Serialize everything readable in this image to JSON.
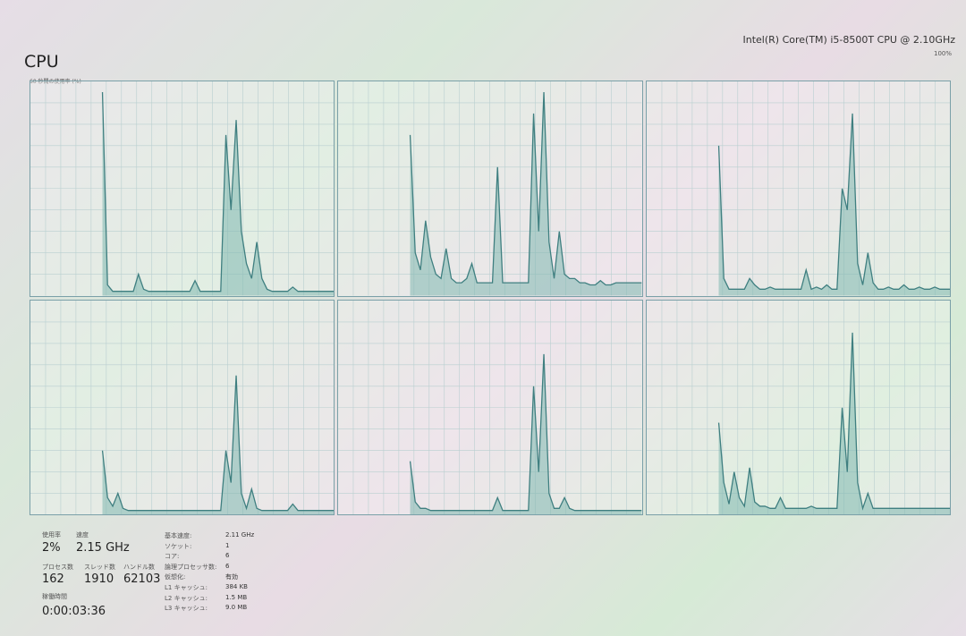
{
  "header": {
    "title": "CPU",
    "subtitle": "60 秒間の使用率 (%)",
    "cpu_name": "Intel(R) Core(TM) i5-8500T CPU @ 2.10GHz",
    "max_label": "100%"
  },
  "colors": {
    "line": "#3f7f80",
    "fill": "#7fb8b0",
    "grid": "#b9cfd0"
  },
  "chart_data": {
    "type": "area",
    "ylim": [
      0,
      100
    ],
    "grid": true,
    "series": [
      {
        "values": [
          0,
          0,
          0,
          0,
          0,
          0,
          0,
          0,
          0,
          0,
          0,
          0,
          0,
          0,
          95,
          5,
          2,
          2,
          2,
          2,
          2,
          10,
          3,
          2,
          2,
          2,
          2,
          2,
          2,
          2,
          2,
          2,
          7,
          2,
          2,
          2,
          2,
          2,
          75,
          40,
          82,
          30,
          15,
          8,
          25,
          8,
          3,
          2,
          2,
          2,
          2,
          4,
          2,
          2,
          2,
          2,
          2,
          2,
          2,
          2
        ]
      },
      {
        "values": [
          0,
          0,
          0,
          0,
          0,
          0,
          0,
          0,
          0,
          0,
          0,
          0,
          0,
          0,
          75,
          20,
          12,
          35,
          18,
          10,
          8,
          22,
          8,
          6,
          6,
          8,
          15,
          6,
          6,
          6,
          6,
          60,
          6,
          6,
          6,
          6,
          6,
          6,
          85,
          30,
          95,
          25,
          8,
          30,
          10,
          8,
          8,
          6,
          6,
          5,
          5,
          7,
          5,
          5,
          6,
          6,
          6,
          6,
          6,
          6
        ]
      },
      {
        "values": [
          0,
          0,
          0,
          0,
          0,
          0,
          0,
          0,
          0,
          0,
          0,
          0,
          0,
          0,
          70,
          8,
          3,
          3,
          3,
          3,
          8,
          5,
          3,
          3,
          4,
          3,
          3,
          3,
          3,
          3,
          3,
          12,
          3,
          4,
          3,
          5,
          3,
          3,
          50,
          40,
          85,
          15,
          5,
          20,
          6,
          3,
          3,
          4,
          3,
          3,
          5,
          3,
          3,
          4,
          3,
          3,
          4,
          3,
          3,
          3
        ]
      },
      {
        "values": [
          0,
          0,
          0,
          0,
          0,
          0,
          0,
          0,
          0,
          0,
          0,
          0,
          0,
          0,
          30,
          8,
          4,
          10,
          3,
          2,
          2,
          2,
          2,
          2,
          2,
          2,
          2,
          2,
          2,
          2,
          2,
          2,
          2,
          2,
          2,
          2,
          2,
          2,
          30,
          15,
          65,
          10,
          3,
          12,
          3,
          2,
          2,
          2,
          2,
          2,
          2,
          5,
          2,
          2,
          2,
          2,
          2,
          2,
          2,
          2
        ]
      },
      {
        "values": [
          0,
          0,
          0,
          0,
          0,
          0,
          0,
          0,
          0,
          0,
          0,
          0,
          0,
          0,
          25,
          6,
          3,
          3,
          2,
          2,
          2,
          2,
          2,
          2,
          2,
          2,
          2,
          2,
          2,
          2,
          2,
          8,
          2,
          2,
          2,
          2,
          2,
          2,
          60,
          20,
          75,
          10,
          3,
          3,
          8,
          3,
          2,
          2,
          2,
          2,
          2,
          2,
          2,
          2,
          2,
          2,
          2,
          2,
          2,
          2
        ]
      },
      {
        "values": [
          0,
          0,
          0,
          0,
          0,
          0,
          0,
          0,
          0,
          0,
          0,
          0,
          0,
          0,
          43,
          15,
          5,
          20,
          8,
          4,
          22,
          6,
          4,
          4,
          3,
          3,
          8,
          3,
          3,
          3,
          3,
          3,
          4,
          3,
          3,
          3,
          3,
          3,
          50,
          20,
          85,
          15,
          3,
          10,
          3,
          3,
          3,
          3,
          3,
          3,
          3,
          3,
          3,
          3,
          3,
          3,
          3,
          3,
          3,
          3
        ]
      }
    ]
  },
  "stats": {
    "usage_label": "使用率",
    "usage": "2%",
    "speed_label": "速度",
    "speed": "2.15 GHz",
    "processes_label": "プロセス数",
    "processes": "162",
    "threads_label": "スレッド数",
    "threads": "1910",
    "handles_label": "ハンドル数",
    "handles": "62103",
    "uptime_label": "稼働時間",
    "uptime": "0:00:03:36"
  },
  "specs": [
    {
      "label": "基本速度:",
      "value": "2.11 GHz"
    },
    {
      "label": "ソケット:",
      "value": "1"
    },
    {
      "label": "コア:",
      "value": "6"
    },
    {
      "label": "論理プロセッサ数:",
      "value": "6"
    },
    {
      "label": "仮想化:",
      "value": "有効"
    },
    {
      "label": "L1 キャッシュ:",
      "value": "384 KB"
    },
    {
      "label": "L2 キャッシュ:",
      "value": "1.5 MB"
    },
    {
      "label": "L3 キャッシュ:",
      "value": "9.0 MB"
    }
  ]
}
